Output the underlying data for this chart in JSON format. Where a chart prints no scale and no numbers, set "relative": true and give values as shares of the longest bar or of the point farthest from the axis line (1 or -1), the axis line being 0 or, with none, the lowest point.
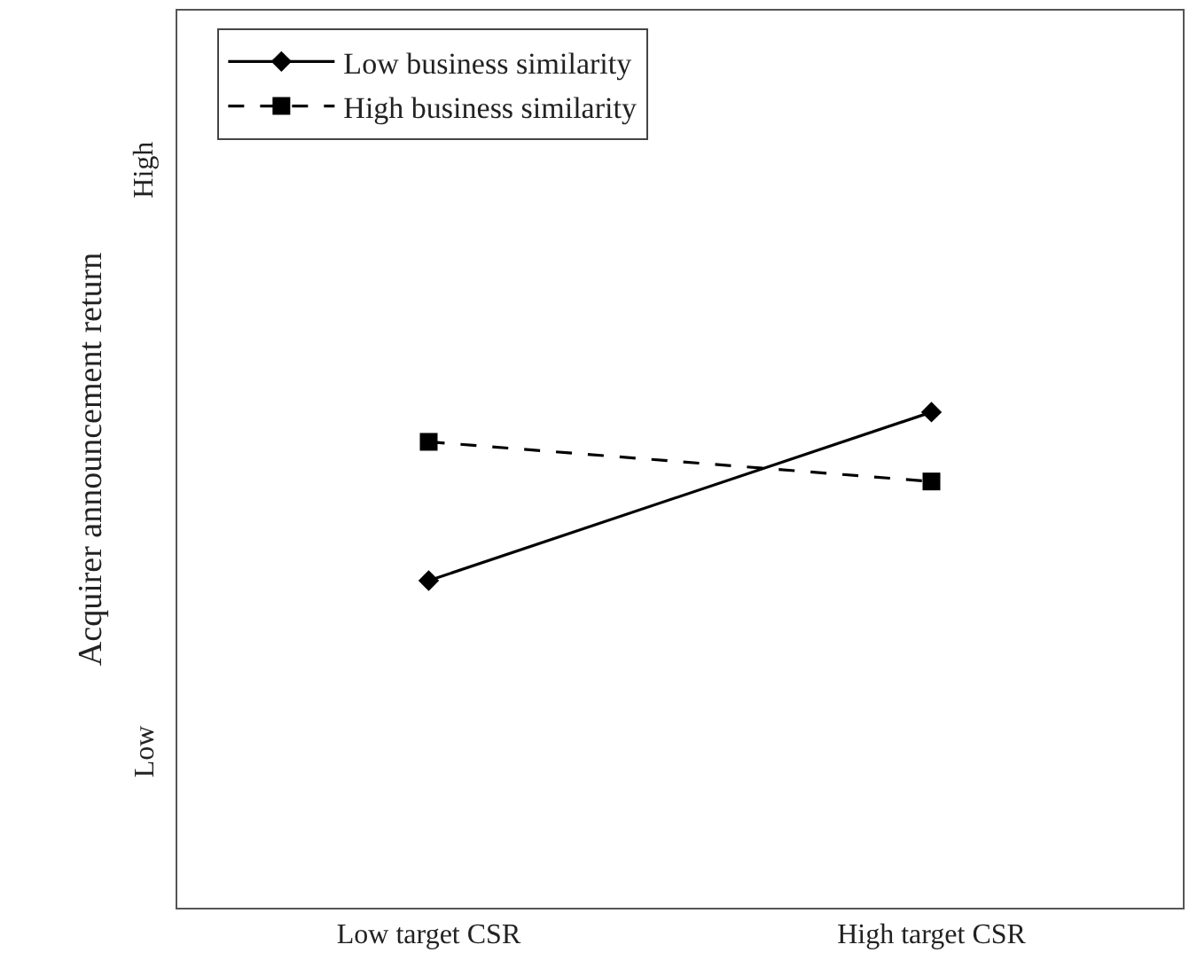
{
  "chart_data": {
    "type": "line",
    "ylabel": "Acquirer announcement return",
    "categories": [
      "Low target CSR",
      "High target CSR"
    ],
    "series": [
      {
        "name": "Low business similarity",
        "color": "#000000",
        "marker": "diamond",
        "line_style": "solid",
        "values": [
          0.66,
          1.0
        ]
      },
      {
        "name": "High business similarity",
        "color": "#000000",
        "marker": "square",
        "line_style": "dashed",
        "values": [
          0.94,
          0.86
        ]
      }
    ],
    "relative": true,
    "annotations": [
      "High",
      "Low"
    ],
    "grid": false,
    "legend": "top left"
  }
}
